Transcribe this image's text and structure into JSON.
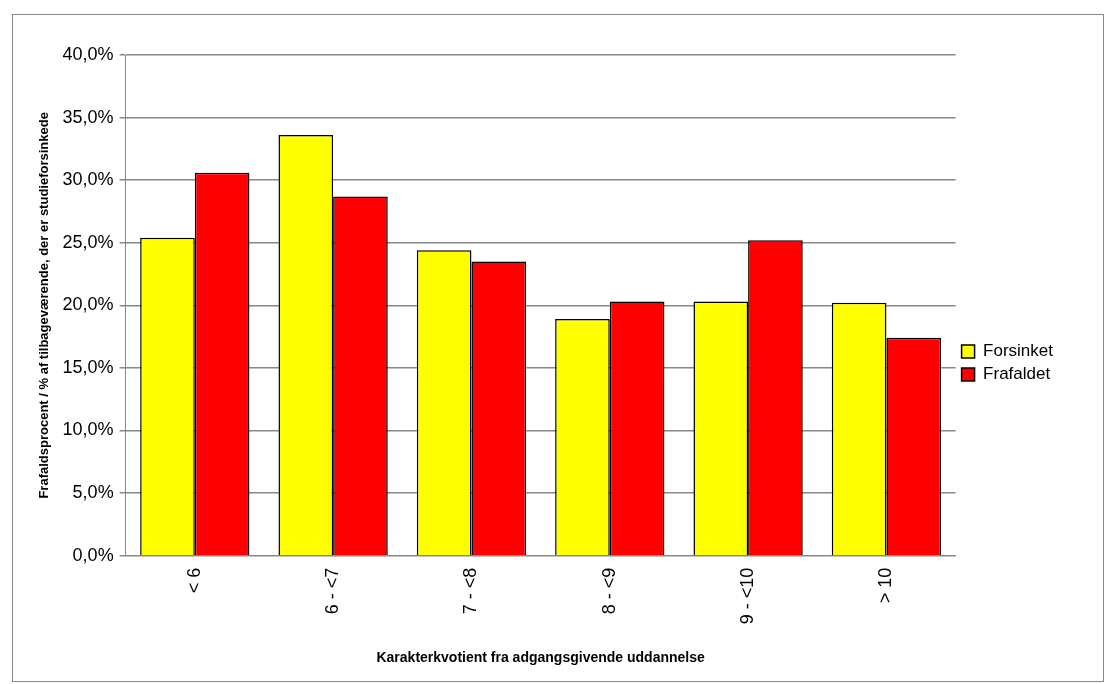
{
  "chart_data": {
    "type": "bar",
    "xlabel": "Karakterkvotient fra adgangsgivende uddannelse",
    "ylabel": "Frafaldsprocent / % af tilbageværende, der er studieforsinkede",
    "categories": [
      "< 6",
      "6 - <7",
      "7 - <8",
      "8 - <9",
      "9 - <10",
      "> 10"
    ],
    "series": [
      {
        "name": "Forsinket",
        "color": "#ffff00",
        "values": [
          25.4,
          33.6,
          24.4,
          18.9,
          20.3,
          20.2
        ]
      },
      {
        "name": "Frafaldet",
        "color": "#ff0000",
        "values": [
          30.6,
          28.7,
          23.5,
          20.3,
          25.2,
          17.4
        ]
      }
    ],
    "ylim": [
      0,
      40
    ],
    "yticks": [
      {
        "value": 0,
        "label": "0,0%"
      },
      {
        "value": 5,
        "label": "5,0%"
      },
      {
        "value": 10,
        "label": "10,0%"
      },
      {
        "value": 15,
        "label": "15,0%"
      },
      {
        "value": 20,
        "label": "20,0%"
      },
      {
        "value": 25,
        "label": "25,0%"
      },
      {
        "value": 30,
        "label": "30,0%"
      },
      {
        "value": 35,
        "label": "35,0%"
      },
      {
        "value": 40,
        "label": "40,0%"
      }
    ],
    "grid": "y",
    "legend": "right"
  }
}
